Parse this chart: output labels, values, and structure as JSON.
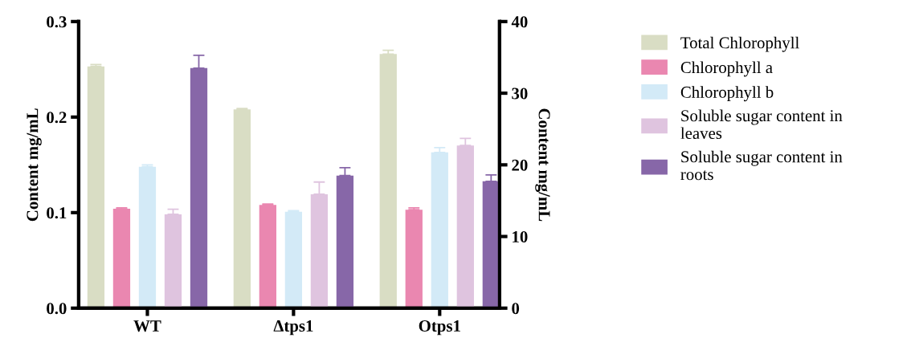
{
  "chart_data": {
    "type": "bar",
    "ylabel": "Content mg/mL",
    "y2label": "Content mg/mL",
    "categories": [
      "WT",
      "Δtps1",
      "Otps1"
    ],
    "series": [
      {
        "name": "Total Chlorophyll",
        "color": "#d9ddc4",
        "values": [
          0.253,
          0.208,
          0.266
        ],
        "errors": [
          [
            0.253,
            0.255
          ],
          [
            0.208,
            0.209
          ],
          [
            0.266,
            0.27
          ]
        ]
      },
      {
        "name": "Chlorophyll a",
        "color": "#ea87b0",
        "values": [
          0.104,
          0.108,
          0.103
        ],
        "errors": [
          [
            0.104,
            0.105
          ],
          [
            0.108,
            0.109
          ],
          [
            0.103,
            0.105
          ]
        ]
      },
      {
        "name": "Chlorophyll b",
        "color": "#d3eaf7",
        "values": [
          0.148,
          0.101,
          0.163
        ],
        "errors": [
          [
            0.148,
            0.15
          ],
          [
            0.101,
            0.102
          ],
          [
            0.163,
            0.168
          ]
        ]
      },
      {
        "name": "Soluble sugar content in leaves",
        "color": "#dfc4df",
        "axis": "y2",
        "values": [
          13.1,
          15.9,
          22.7
        ],
        "errors": [
          [
            13.1,
            13.8
          ],
          [
            15.9,
            17.6
          ],
          [
            22.7,
            23.7
          ]
        ]
      },
      {
        "name": "Soluble sugar content in roots",
        "color": "#8767a8",
        "axis": "y2",
        "values": [
          33.5,
          18.5,
          17.7
        ],
        "errors": [
          [
            33.5,
            35.3
          ],
          [
            18.5,
            19.6
          ],
          [
            17.7,
            18.6
          ]
        ]
      }
    ],
    "ylim": [
      0,
      0.3
    ],
    "yticks": [
      {
        "value": 0,
        "label": "0.0"
      },
      {
        "value": 0.1,
        "label": "0.1"
      },
      {
        "value": 0.2,
        "label": "0.2"
      },
      {
        "value": 0.3,
        "label": "0.3"
      }
    ],
    "y2lim": [
      0,
      40
    ],
    "y2ticks": [
      0,
      10,
      20,
      30,
      40
    ],
    "legend": "right",
    "grid": false
  }
}
